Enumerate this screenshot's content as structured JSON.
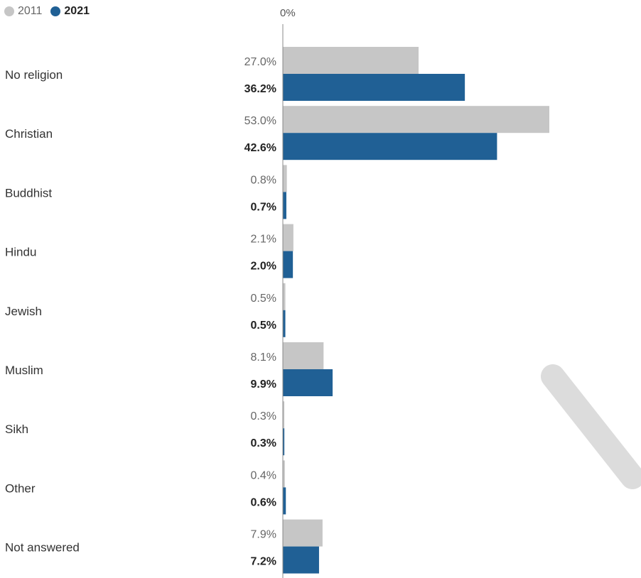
{
  "legend": {
    "items": [
      {
        "label": "2011",
        "color": "#c6c6c6"
      },
      {
        "label": "2021",
        "color": "#206095"
      }
    ]
  },
  "chart_data": {
    "type": "bar",
    "orientation": "horizontal",
    "x_tick_label": "0%",
    "xlim": [
      0,
      53
    ],
    "categories": [
      "No religion",
      "Christian",
      "Buddhist",
      "Hindu",
      "Jewish",
      "Muslim",
      "Sikh",
      "Other",
      "Not answered"
    ],
    "series": [
      {
        "name": "2011",
        "color": "#c6c6c6",
        "values": [
          27.0,
          53.0,
          0.8,
          2.1,
          0.5,
          8.1,
          0.3,
          0.4,
          7.9
        ],
        "labels": [
          "27.0%",
          "53.0%",
          "0.8%",
          "2.1%",
          "0.5%",
          "8.1%",
          "0.3%",
          "0.4%",
          "7.9%"
        ]
      },
      {
        "name": "2021",
        "color": "#206095",
        "values": [
          36.2,
          42.6,
          0.7,
          2.0,
          0.5,
          9.9,
          0.3,
          0.6,
          7.2
        ],
        "labels": [
          "36.2%",
          "42.6%",
          "0.7%",
          "2.0%",
          "0.5%",
          "9.9%",
          "0.3%",
          "0.6%",
          "7.2%"
        ]
      }
    ],
    "legend_position": "top-left",
    "grid": false
  }
}
